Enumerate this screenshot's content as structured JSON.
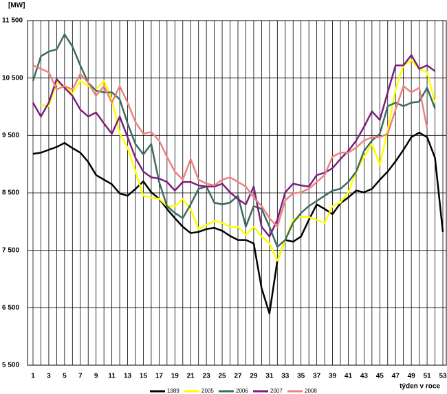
{
  "chart_data": {
    "type": "line",
    "y_label": "[MW]",
    "x_label": "týden v roce",
    "x": [
      1,
      2,
      3,
      4,
      5,
      6,
      7,
      8,
      9,
      10,
      11,
      12,
      13,
      14,
      15,
      16,
      17,
      18,
      19,
      20,
      21,
      22,
      23,
      24,
      25,
      26,
      27,
      28,
      29,
      30,
      31,
      32,
      33,
      34,
      35,
      36,
      37,
      38,
      39,
      40,
      41,
      42,
      43,
      44,
      45,
      46,
      47,
      48,
      49,
      50,
      51,
      52,
      53
    ],
    "xlim": [
      1,
      53
    ],
    "xticks": [
      1,
      3,
      5,
      7,
      9,
      11,
      13,
      15,
      17,
      19,
      21,
      23,
      25,
      27,
      29,
      31,
      33,
      35,
      37,
      39,
      41,
      43,
      45,
      47,
      49,
      51,
      53
    ],
    "ylim": [
      5500,
      11500
    ],
    "yticks": [
      {
        "value": 5500,
        "label": "5 500"
      },
      {
        "value": 6500,
        "label": "6 500"
      },
      {
        "value": 7500,
        "label": "7 500"
      },
      {
        "value": 8500,
        "label": "8 500"
      },
      {
        "value": 9500,
        "label": "9 500"
      },
      {
        "value": 10500,
        "label": "10 500"
      },
      {
        "value": 11500,
        "label": "11 500"
      }
    ],
    "grid": true,
    "legend": "bottom",
    "series": [
      {
        "name": "1989",
        "color": "#000000",
        "values": [
          9180,
          9200,
          9250,
          9300,
          9370,
          9280,
          9200,
          9040,
          8810,
          8730,
          8650,
          8490,
          8450,
          8570,
          8700,
          8510,
          8400,
          8220,
          8060,
          7910,
          7800,
          7820,
          7870,
          7890,
          7840,
          7750,
          7680,
          7680,
          7620,
          6840,
          6400,
          7320,
          7680,
          7650,
          7740,
          8030,
          8300,
          8220,
          8130,
          8320,
          8420,
          8540,
          8510,
          8570,
          8730,
          8870,
          9050,
          9250,
          9470,
          9550,
          9470,
          9110,
          7820
        ]
      },
      {
        "name": "2005",
        "color": "#ffff00",
        "values": [
          null,
          10030,
          10010,
          10420,
          10360,
          10230,
          10450,
          10360,
          10300,
          10450,
          10130,
          9530,
          9290,
          8870,
          8450,
          8420,
          8400,
          8270,
          8270,
          8390,
          8220,
          7870,
          7940,
          8010,
          7980,
          7910,
          7910,
          7770,
          7910,
          7740,
          7620,
          7320,
          7680,
          8030,
          8080,
          8080,
          8030,
          7980,
          8270,
          8330,
          8510,
          8870,
          9130,
          9350,
          8990,
          9590,
          10300,
          10720,
          10810,
          10660,
          10600,
          10070,
          null
        ]
      },
      {
        "name": "2006",
        "color": "#3a6b60",
        "values": [
          10450,
          10880,
          10960,
          11000,
          11260,
          11050,
          10720,
          10420,
          10280,
          10250,
          10250,
          10130,
          9710,
          9350,
          9170,
          9350,
          8690,
          8270,
          8150,
          8060,
          8300,
          8570,
          8610,
          8330,
          8300,
          8330,
          8450,
          7910,
          8270,
          8220,
          7910,
          7560,
          7680,
          7980,
          8150,
          8270,
          8360,
          8450,
          8540,
          8570,
          8690,
          8870,
          9230,
          9410,
          9530,
          10010,
          10070,
          10010,
          10070,
          10090,
          10330,
          9970,
          null
        ]
      },
      {
        "name": "2007",
        "color": "#7b1f7b",
        "values": [
          10070,
          9830,
          10070,
          10480,
          10330,
          10190,
          9950,
          9830,
          9900,
          9710,
          9530,
          9830,
          9470,
          9110,
          8870,
          8770,
          8750,
          8690,
          8540,
          8690,
          8690,
          8630,
          8610,
          8610,
          8660,
          8510,
          8390,
          8300,
          8610,
          7910,
          7740,
          8030,
          8510,
          8660,
          8630,
          8610,
          8810,
          8850,
          8930,
          9090,
          9230,
          9410,
          9650,
          9920,
          9770,
          10250,
          10720,
          10720,
          10900,
          10660,
          10720,
          10620,
          null
        ]
      },
      {
        "name": "2008",
        "color": "#f08080",
        "values": [
          10720,
          10660,
          10600,
          10300,
          10360,
          10300,
          10570,
          10420,
          10190,
          10360,
          10070,
          10360,
          10070,
          9730,
          9530,
          9560,
          9410,
          9130,
          8870,
          8730,
          9090,
          8730,
          8660,
          8630,
          8730,
          8770,
          8690,
          8610,
          8420,
          8270,
          8060,
          7910,
          8370,
          8490,
          8510,
          8570,
          8690,
          8810,
          9130,
          9200,
          9200,
          9290,
          9410,
          9470,
          9470,
          9530,
          9950,
          10360,
          10250,
          10330,
          9620,
          null,
          null
        ]
      }
    ]
  }
}
